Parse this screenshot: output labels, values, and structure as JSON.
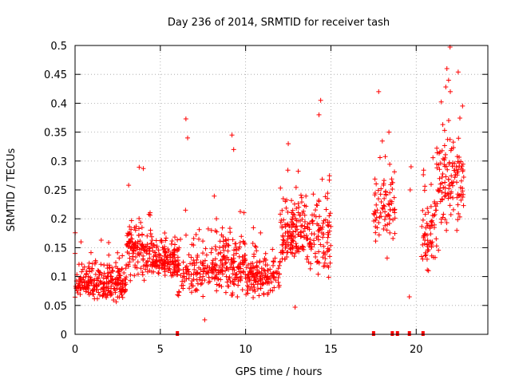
{
  "chart_data": {
    "type": "scatter",
    "title": "Day 236 of 2014, SRMTID for receiver tash",
    "xlabel": "GPS time / hours",
    "ylabel": "SRMTID / TECUs",
    "xlim": [
      0,
      24.2
    ],
    "ylim": [
      0,
      0.5
    ],
    "xticks": [
      0,
      5,
      10,
      15,
      20
    ],
    "yticks": [
      0,
      0.05,
      0.1,
      0.15,
      0.2,
      0.25,
      0.3,
      0.35,
      0.4,
      0.45,
      0.5
    ],
    "grid": true,
    "marker": "+",
    "series_color": "#ff0000",
    "clusters": [
      {
        "x_range": [
          0,
          3
        ],
        "y_center": 0.09,
        "y_spread": 0.025,
        "count": 260
      },
      {
        "x_range": [
          3,
          4.5
        ],
        "y_center": 0.15,
        "y_spread": 0.04,
        "count": 130
      },
      {
        "x_range": [
          4.5,
          6
        ],
        "y_center": 0.13,
        "y_spread": 0.025,
        "count": 140
      },
      {
        "x_range": [
          6,
          8.5
        ],
        "y_center": 0.11,
        "y_spread": 0.035,
        "count": 160
      },
      {
        "x_range": [
          8.5,
          10
        ],
        "y_center": 0.12,
        "y_spread": 0.04,
        "count": 140
      },
      {
        "x_range": [
          10,
          12
        ],
        "y_center": 0.1,
        "y_spread": 0.025,
        "count": 150
      },
      {
        "x_range": [
          12,
          13
        ],
        "y_center": 0.17,
        "y_spread": 0.045,
        "count": 100
      },
      {
        "x_range": [
          13,
          15
        ],
        "y_center": 0.18,
        "y_spread": 0.06,
        "count": 150
      },
      {
        "x_range": [
          17.5,
          18.8
        ],
        "y_center": 0.22,
        "y_spread": 0.05,
        "count": 80
      },
      {
        "x_range": [
          20.3,
          21.2
        ],
        "y_center": 0.18,
        "y_spread": 0.06,
        "count": 70
      },
      {
        "x_range": [
          21.2,
          22.8
        ],
        "y_center": 0.26,
        "y_spread": 0.08,
        "count": 130
      }
    ],
    "points": [
      [
        6.5,
        0.373
      ],
      [
        6.6,
        0.34
      ],
      [
        9.2,
        0.345
      ],
      [
        9.3,
        0.32
      ],
      [
        12.5,
        0.33
      ],
      [
        14.4,
        0.405
      ],
      [
        14.3,
        0.38
      ],
      [
        17.8,
        0.42
      ],
      [
        18.4,
        0.35
      ],
      [
        21.8,
        0.46
      ],
      [
        21.9,
        0.44
      ],
      [
        22.0,
        0.42
      ],
      [
        4.0,
        0.287
      ],
      [
        19.6,
        0.065
      ],
      [
        19.7,
        0.29
      ],
      [
        19.65,
        0.25
      ],
      [
        12.9,
        0.047
      ],
      [
        7.6,
        0.025
      ],
      [
        0.35,
        0.16
      ]
    ],
    "zero_points": [
      6.0,
      17.5,
      18.6,
      18.9,
      19.6,
      20.4
    ]
  }
}
